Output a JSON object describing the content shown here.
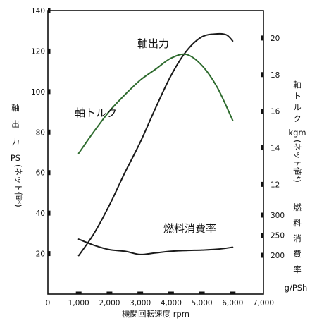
{
  "chart_data": {
    "type": "line",
    "x_axis": {
      "label": "機関回転速度 rpm",
      "ticks": [
        {
          "value": 0,
          "label": "0"
        },
        {
          "value": 1000,
          "label": "1,000"
        },
        {
          "value": 2000,
          "label": "2,000"
        },
        {
          "value": 3000,
          "label": "3,000"
        },
        {
          "value": 4000,
          "label": "4,000"
        },
        {
          "value": 5000,
          "label": "5,000"
        },
        {
          "value": 6000,
          "label": "6,000"
        },
        {
          "value": 7000,
          "label": "7,000"
        }
      ],
      "range": [
        0,
        7000
      ]
    },
    "left_axis": {
      "label_chars": [
        "軸",
        "出",
        "力",
        "PS"
      ],
      "sublabel": "(ネット値*)",
      "ticks": [
        20,
        40,
        60,
        80,
        100,
        120,
        140
      ],
      "range": [
        0,
        140
      ]
    },
    "right_torque_axis": {
      "label_chars": [
        "軸",
        "ト",
        "ル",
        "ク"
      ],
      "unit": "kgm",
      "sublabel": "(ネット値*)",
      "ticks": [
        12,
        14,
        16,
        18,
        20
      ],
      "range": [
        6,
        21.5
      ]
    },
    "right_fuel_axis": {
      "label_chars": [
        "燃",
        "料",
        "消",
        "費",
        "率"
      ],
      "unit": "g/PSh",
      "ticks": [
        200,
        250,
        300
      ],
      "range": [
        200,
        300
      ]
    },
    "series": [
      {
        "name": "軸出力",
        "axis": "left",
        "color": "#1a1a1a",
        "x": [
          1000,
          1500,
          2000,
          2500,
          3000,
          3500,
          4000,
          4500,
          5000,
          5500,
          5800,
          6000
        ],
        "y": [
          19,
          30,
          44,
          60,
          75,
          92,
          108,
          120,
          127,
          128.5,
          128,
          125
        ]
      },
      {
        "name": "軸トルク",
        "axis": "torque",
        "color": "#2e6b2e",
        "x": [
          1000,
          1500,
          2000,
          2500,
          3000,
          3500,
          4000,
          4500,
          5000,
          5500,
          6000
        ],
        "y": [
          13.7,
          14.9,
          16.0,
          16.9,
          17.7,
          18.3,
          18.9,
          19.1,
          18.5,
          17.3,
          15.5
        ]
      },
      {
        "name": "燃料消費率",
        "axis": "fuel",
        "color": "#1a1a1a",
        "x": [
          1000,
          1500,
          2000,
          2500,
          3000,
          3500,
          4000,
          4500,
          5000,
          5500,
          6000
        ],
        "y": [
          240,
          225,
          214,
          210,
          202,
          206,
          210,
          212,
          213,
          215,
          220
        ]
      }
    ],
    "grid": false,
    "legend": "inline labels"
  }
}
